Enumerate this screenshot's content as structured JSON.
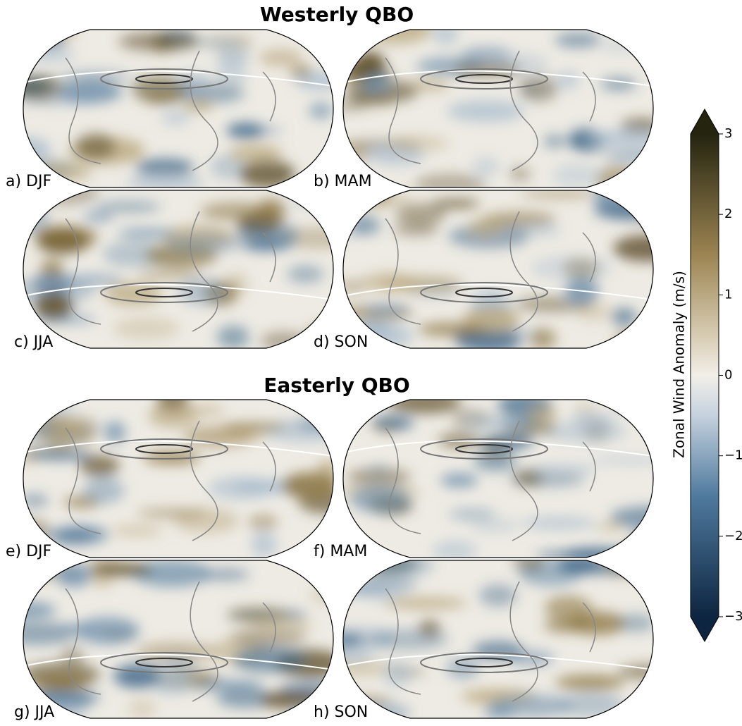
{
  "sections": [
    {
      "title": "Westerly QBO",
      "panels": [
        "a) DJF",
        "b) MAM",
        "c) JJA",
        "d) SON"
      ]
    },
    {
      "title": "Easterly QBO",
      "panels": [
        "e) DJF",
        "f) MAM",
        "g) JJA",
        "h) SON"
      ]
    }
  ],
  "colorbar": {
    "label": "Zonal Wind Anomaly (m/s)",
    "lim": [
      -3,
      3
    ],
    "ticks": [
      {
        "value": -3,
        "label": "−3"
      },
      {
        "value": -2,
        "label": "−2"
      },
      {
        "value": -1,
        "label": "−1"
      },
      0,
      1,
      2,
      3
    ]
  }
}
